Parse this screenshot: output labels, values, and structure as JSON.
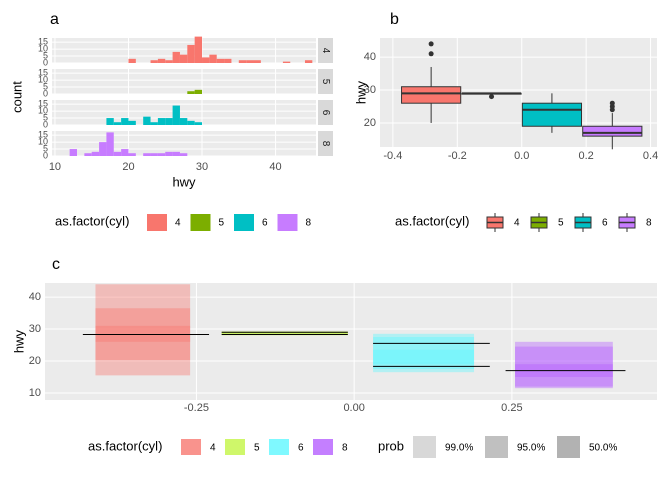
{
  "chart_data": [
    {
      "type": "histogram",
      "title": "a",
      "xlabel": "hwy",
      "ylabel": "count",
      "legend_title": "as.factor(cyl)",
      "legend": "bottom",
      "grid": true,
      "bins": [
        11,
        12,
        13,
        14,
        15,
        16,
        17,
        18,
        19,
        20,
        21,
        22,
        23,
        24,
        25,
        26,
        27,
        28,
        29,
        30,
        31,
        32,
        33,
        34,
        35,
        36,
        37,
        38,
        39,
        40,
        41,
        42,
        43,
        44,
        45
      ],
      "xlim": [
        9.6,
        45.5
      ],
      "xticks": [
        10,
        20,
        30,
        40
      ],
      "ylim": [
        0,
        18
      ],
      "yticks": [
        0,
        5,
        10,
        15
      ],
      "series": [
        {
          "name": "4",
          "color": "#F8766D",
          "values": [
            0,
            0,
            0,
            0,
            0,
            0,
            0,
            0,
            0,
            3,
            0,
            0,
            2,
            3,
            2,
            8,
            6,
            13,
            19,
            4,
            6,
            3,
            3,
            0,
            2,
            2,
            2,
            0,
            0,
            0,
            1,
            0,
            0,
            2
          ]
        },
        {
          "name": "5",
          "color": "#7CAE00",
          "values": [
            0,
            0,
            0,
            0,
            0,
            0,
            0,
            0,
            0,
            0,
            0,
            0,
            0,
            0,
            0,
            0,
            0,
            2,
            3,
            0,
            0,
            0,
            0,
            0,
            0,
            0,
            0,
            0,
            0,
            0,
            0,
            0,
            0,
            0
          ]
        },
        {
          "name": "6",
          "color": "#00BFC4",
          "values": [
            0,
            0,
            0,
            0,
            0,
            0,
            5,
            2,
            5,
            3,
            0,
            6,
            2,
            5,
            5,
            14,
            5,
            3,
            2,
            0,
            0,
            0,
            0,
            0,
            0,
            0,
            0,
            0,
            0,
            0,
            0,
            0,
            0,
            0
          ]
        },
        {
          "name": "8",
          "color": "#C77CFF",
          "values": [
            0,
            5,
            0,
            2,
            3,
            10,
            17,
            3,
            5,
            2,
            0,
            2,
            2,
            2,
            3,
            3,
            2,
            0,
            0,
            0,
            0,
            0,
            0,
            0,
            0,
            0,
            0,
            0,
            0,
            0,
            0,
            0,
            0,
            0
          ]
        }
      ]
    },
    {
      "type": "box",
      "title": "b",
      "ylabel": "hwy",
      "legend_title": "as.factor(cyl)",
      "legend": "bottom",
      "grid": true,
      "xlim": [
        -0.44,
        0.42
      ],
      "xticks": [
        -0.4,
        -0.2,
        {
          "value": 0,
          "label": "0.0"
        },
        0.2,
        0.4
      ],
      "ylim": [
        12.7,
        45.8
      ],
      "yticks": [
        20,
        30,
        40
      ],
      "series": [
        {
          "name": "4",
          "color": "#F8766D",
          "x": -0.28125,
          "low": 20,
          "q1": 26,
          "median": 29,
          "q3": 31,
          "high": 37,
          "outliers": [
            41,
            44
          ]
        },
        {
          "name": "5",
          "color": "#7CAE00",
          "x": -0.09375,
          "low": 28.75,
          "q1": 28.75,
          "median": 29,
          "q3": 29,
          "high": 29,
          "outliers": [
            28
          ]
        },
        {
          "name": "6",
          "color": "#00BFC4",
          "x": 0.09375,
          "low": 17,
          "q1": 19,
          "median": 24,
          "q3": 26,
          "high": 29,
          "outliers": []
        },
        {
          "name": "8",
          "color": "#C77CFF",
          "x": 0.28125,
          "low": 12,
          "q1": 16,
          "median": 17,
          "q3": 19,
          "high": 23,
          "outliers": [
            24,
            25,
            26
          ]
        }
      ]
    },
    {
      "type": "interval",
      "title": "c",
      "ylabel": "hwy",
      "legend_title": "as.factor(cyl)",
      "prob_title": "prob",
      "legend": "bottom",
      "grid": true,
      "alpha": 0.4,
      "probs": [
        99,
        95,
        50
      ],
      "prob_labels": [
        "99.0%",
        "95.0%",
        "50.0%"
      ],
      "prob_color": "#9E9E9E",
      "xlim": [
        -0.49,
        0.48
      ],
      "xticks": [
        {
          "value": -0.25,
          "label": "-0.25"
        },
        {
          "value": 0,
          "label": "0.00"
        },
        {
          "value": 0.25,
          "label": "0.25"
        }
      ],
      "ylim": [
        7.8,
        44.4
      ],
      "yticks": [
        10,
        20,
        30,
        40
      ],
      "series": [
        {
          "name": "4",
          "color": "#F8766D",
          "xmin": -0.41,
          "xmax": -0.26,
          "intervals": [
            [
              15.5,
              44
            ],
            [
              20.3,
              36.5
            ],
            [
              26,
              31
            ]
          ],
          "lines": [
            {
              "y": 28.3,
              "x": [
                -0.43,
                -0.23
              ]
            }
          ]
        },
        {
          "name": "5",
          "color": "#C4F542",
          "xmin": -0.21,
          "xmax": -0.01,
          "intervals": [
            [
              28,
              29.3
            ],
            [
              28.2,
              29.1
            ],
            [
              28.4,
              29
            ]
          ],
          "lines": [
            {
              "y": 28.3,
              "x": [
                -0.21,
                -0.01
              ]
            },
            {
              "y": 29,
              "x": [
                -0.21,
                -0.01
              ]
            }
          ]
        },
        {
          "name": "6",
          "color": "#5CF7FF",
          "xmin": 0.03,
          "xmax": 0.19,
          "intervals": [
            [
              16.5,
              28.5
            ],
            [
              17.5,
              27.5
            ],
            [
              19,
              23.5
            ]
          ],
          "lines": [
            {
              "y": 25.5,
              "x": [
                0.03,
                0.215
              ]
            },
            {
              "y": 18.3,
              "x": [
                0.03,
                0.215
              ]
            }
          ]
        },
        {
          "name": "8",
          "color": "#B45CFF",
          "xmin": 0.255,
          "xmax": 0.41,
          "intervals": [
            [
              11.5,
              26
            ],
            [
              12,
              24.5
            ],
            [
              15,
              19
            ]
          ],
          "lines": [
            {
              "y": 17,
              "x": [
                0.24,
                0.43
              ]
            }
          ]
        }
      ]
    }
  ]
}
